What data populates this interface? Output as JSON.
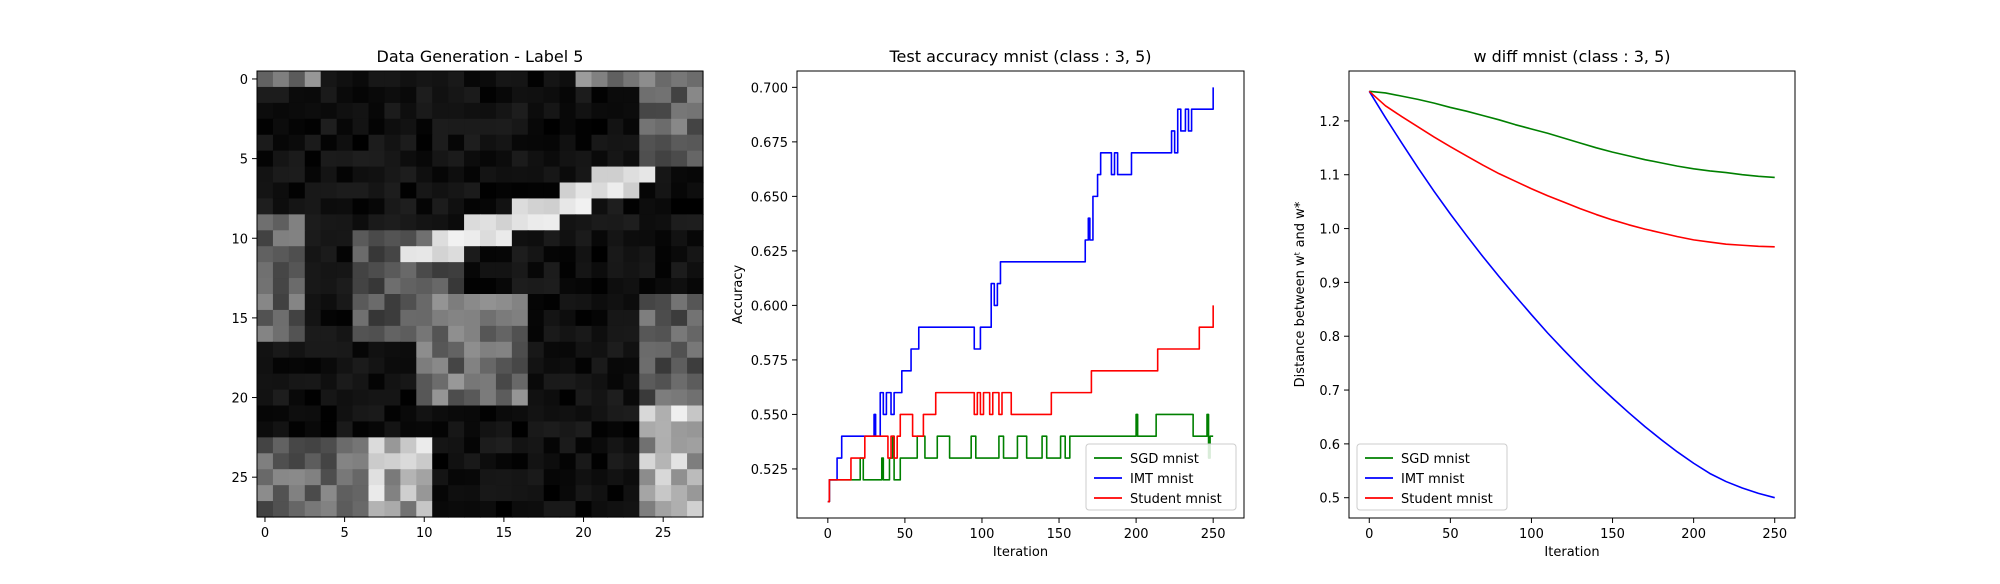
{
  "figure": {
    "panels": [
      {
        "title": "Data Generation - Label 5"
      },
      {
        "title": "Test accuracy mnist (class : 3, 5)",
        "xlabel": "Iteration",
        "ylabel": "Accuracy"
      },
      {
        "title": "w diff mnist (class : 3, 5)",
        "xlabel": "Iteration",
        "ylabel": "Distance between wᵗ and w*"
      }
    ]
  },
  "chart_data": [
    {
      "type": "heatmap",
      "title": "Data Generation - Label 5",
      "colormap": "gray",
      "value_range": [
        0,
        1
      ],
      "x_ticks": [
        0,
        5,
        10,
        15,
        20,
        25
      ],
      "y_ticks": [
        0,
        5,
        10,
        15,
        20,
        25
      ],
      "grid_size": [
        28,
        28
      ],
      "bright_regions": [
        {
          "row": 0,
          "col_from": 0,
          "col_to": 3,
          "value": 0.6
        },
        {
          "row": 0,
          "col_from": 20,
          "col_to": 27,
          "value": 0.65
        },
        {
          "rows": [
            0,
            5
          ],
          "cols": [
            24,
            27
          ],
          "value": 0.55
        },
        {
          "diagonal_stroke": {
            "from": [
              11,
              9
            ],
            "to": [
              6,
              22
            ]
          },
          "value": 0.95
        },
        {
          "rows": [
            9,
            16
          ],
          "cols": [
            0,
            2
          ],
          "value": 0.55
        },
        {
          "rows": [
            10,
            16
          ],
          "cols": [
            6,
            12
          ],
          "value": 0.45
        },
        {
          "rows": [
            14,
            20
          ],
          "cols": [
            10,
            16
          ],
          "value": 0.6
        },
        {
          "rows": [
            14,
            21
          ],
          "cols": [
            24,
            27
          ],
          "value": 0.5
        },
        {
          "rows": [
            23,
            27
          ],
          "cols": [
            7,
            10
          ],
          "value": 0.95
        },
        {
          "rows": [
            23,
            27
          ],
          "cols": [
            0,
            6
          ],
          "value": 0.55
        },
        {
          "rows": [
            21,
            27
          ],
          "cols": [
            24,
            27
          ],
          "value": 0.95
        }
      ]
    },
    {
      "type": "line",
      "title": "Test accuracy mnist (class : 3, 5)",
      "xlabel": "Iteration",
      "ylabel": "Accuracy",
      "xlim": [
        -20,
        270
      ],
      "ylim": [
        0.5025,
        0.7075
      ],
      "x_ticks": [
        0,
        50,
        100,
        150,
        200,
        250
      ],
      "y_ticks": [
        0.525,
        0.55,
        0.575,
        0.6,
        0.625,
        0.65,
        0.675,
        0.7
      ],
      "y_tick_labels": [
        "0.525",
        "0.550",
        "0.575",
        "0.600",
        "0.625",
        "0.650",
        "0.675",
        "0.700"
      ],
      "legend": "bottom-right",
      "series": [
        {
          "name": "SGD mnist",
          "color": "#008000",
          "points": [
            [
              0,
              0.51
            ],
            [
              1,
              0.52
            ],
            [
              20,
              0.52
            ],
            [
              21,
              0.53
            ],
            [
              23,
              0.52
            ],
            [
              34,
              0.52
            ],
            [
              35,
              0.53
            ],
            [
              36,
              0.52
            ],
            [
              40,
              0.53
            ],
            [
              42,
              0.54
            ],
            [
              43,
              0.52
            ],
            [
              46,
              0.52
            ],
            [
              47,
              0.53
            ],
            [
              57,
              0.53
            ],
            [
              58,
              0.54
            ],
            [
              62,
              0.54
            ],
            [
              63,
              0.53
            ],
            [
              70,
              0.53
            ],
            [
              71,
              0.54
            ],
            [
              78,
              0.54
            ],
            [
              79,
              0.53
            ],
            [
              92,
              0.53
            ],
            [
              93,
              0.54
            ],
            [
              95,
              0.54
            ],
            [
              96,
              0.53
            ],
            [
              110,
              0.53
            ],
            [
              111,
              0.54
            ],
            [
              113,
              0.54
            ],
            [
              114,
              0.53
            ],
            [
              122,
              0.53
            ],
            [
              123,
              0.54
            ],
            [
              128,
              0.54
            ],
            [
              129,
              0.53
            ],
            [
              138,
              0.53
            ],
            [
              139,
              0.54
            ],
            [
              141,
              0.54
            ],
            [
              142,
              0.53
            ],
            [
              150,
              0.53
            ],
            [
              151,
              0.54
            ],
            [
              153,
              0.54
            ],
            [
              154,
              0.53
            ],
            [
              156,
              0.53
            ],
            [
              157,
              0.54
            ],
            [
              199,
              0.54
            ],
            [
              200,
              0.55
            ],
            [
              201,
              0.54
            ],
            [
              212,
              0.54
            ],
            [
              213,
              0.55
            ],
            [
              236,
              0.55
            ],
            [
              237,
              0.54
            ],
            [
              245,
              0.54
            ],
            [
              246,
              0.55
            ],
            [
              247,
              0.53
            ],
            [
              248,
              0.54
            ],
            [
              250,
              0.54
            ]
          ]
        },
        {
          "name": "IMT mnist",
          "color": "#0000ff",
          "points": [
            [
              0,
              0.51
            ],
            [
              1,
              0.52
            ],
            [
              5,
              0.52
            ],
            [
              6,
              0.53
            ],
            [
              9,
              0.54
            ],
            [
              29,
              0.54
            ],
            [
              30,
              0.55
            ],
            [
              31,
              0.54
            ],
            [
              34,
              0.56
            ],
            [
              36,
              0.55
            ],
            [
              38,
              0.56
            ],
            [
              41,
              0.55
            ],
            [
              43,
              0.56
            ],
            [
              46,
              0.56
            ],
            [
              48,
              0.57
            ],
            [
              52,
              0.57
            ],
            [
              54,
              0.58
            ],
            [
              58,
              0.58
            ],
            [
              59,
              0.59
            ],
            [
              94,
              0.59
            ],
            [
              95,
              0.58
            ],
            [
              98,
              0.58
            ],
            [
              99,
              0.59
            ],
            [
              104,
              0.59
            ],
            [
              106,
              0.61
            ],
            [
              108,
              0.6
            ],
            [
              110,
              0.61
            ],
            [
              112,
              0.62
            ],
            [
              166,
              0.62
            ],
            [
              167,
              0.63
            ],
            [
              169,
              0.64
            ],
            [
              170,
              0.63
            ],
            [
              172,
              0.65
            ],
            [
              175,
              0.66
            ],
            [
              177,
              0.67
            ],
            [
              183,
              0.67
            ],
            [
              184,
              0.66
            ],
            [
              186,
              0.67
            ],
            [
              188,
              0.66
            ],
            [
              195,
              0.66
            ],
            [
              197,
              0.67
            ],
            [
              222,
              0.67
            ],
            [
              223,
              0.68
            ],
            [
              225,
              0.67
            ],
            [
              227,
              0.69
            ],
            [
              229,
              0.68
            ],
            [
              232,
              0.69
            ],
            [
              234,
              0.68
            ],
            [
              236,
              0.69
            ],
            [
              246,
              0.69
            ],
            [
              247,
              0.69
            ],
            [
              248,
              0.69
            ],
            [
              250,
              0.7
            ]
          ]
        },
        {
          "name": "Student mnist",
          "color": "#ff0000",
          "points": [
            [
              0,
              0.51
            ],
            [
              1,
              0.52
            ],
            [
              14,
              0.52
            ],
            [
              15,
              0.53
            ],
            [
              23,
              0.53
            ],
            [
              24,
              0.54
            ],
            [
              38,
              0.54
            ],
            [
              39,
              0.53
            ],
            [
              41,
              0.54
            ],
            [
              43,
              0.53
            ],
            [
              45,
              0.54
            ],
            [
              47,
              0.55
            ],
            [
              53,
              0.55
            ],
            [
              55,
              0.54
            ],
            [
              60,
              0.54
            ],
            [
              62,
              0.55
            ],
            [
              69,
              0.55
            ],
            [
              70,
              0.56
            ],
            [
              94,
              0.56
            ],
            [
              95,
              0.55
            ],
            [
              97,
              0.56
            ],
            [
              99,
              0.55
            ],
            [
              101,
              0.56
            ],
            [
              104,
              0.56
            ],
            [
              105,
              0.55
            ],
            [
              107,
              0.56
            ],
            [
              110,
              0.56
            ],
            [
              111,
              0.55
            ],
            [
              113,
              0.56
            ],
            [
              118,
              0.56
            ],
            [
              119,
              0.55
            ],
            [
              144,
              0.55
            ],
            [
              145,
              0.56
            ],
            [
              170,
              0.56
            ],
            [
              171,
              0.57
            ],
            [
              213,
              0.57
            ],
            [
              214,
              0.58
            ],
            [
              240,
              0.58
            ],
            [
              241,
              0.59
            ],
            [
              248,
              0.59
            ],
            [
              250,
              0.6
            ]
          ]
        }
      ]
    },
    {
      "type": "line",
      "title": "w diff mnist (class : 3, 5)",
      "xlabel": "Iteration",
      "ylabel": "Distance between wᵗ and w*",
      "xlim": [
        -12.5,
        262.5
      ],
      "ylim": [
        0.4623,
        1.2927
      ],
      "x_ticks": [
        0,
        50,
        100,
        150,
        200,
        250
      ],
      "y_ticks": [
        0.5,
        0.6,
        0.7,
        0.8,
        0.9,
        1.0,
        1.1,
        1.2
      ],
      "y_tick_labels": [
        "0.5",
        "0.6",
        "0.7",
        "0.8",
        "0.9",
        "1.0",
        "1.1",
        "1.2"
      ],
      "legend": "bottom-left",
      "series": [
        {
          "name": "SGD mnist",
          "color": "#008000",
          "points": [
            [
              0,
              1.255
            ],
            [
              10,
              1.252
            ],
            [
              20,
              1.246
            ],
            [
              30,
              1.24
            ],
            [
              40,
              1.233
            ],
            [
              50,
              1.225
            ],
            [
              60,
              1.218
            ],
            [
              70,
              1.21
            ],
            [
              80,
              1.202
            ],
            [
              90,
              1.193
            ],
            [
              100,
              1.185
            ],
            [
              110,
              1.177
            ],
            [
              120,
              1.168
            ],
            [
              130,
              1.159
            ],
            [
              140,
              1.15
            ],
            [
              150,
              1.142
            ],
            [
              160,
              1.135
            ],
            [
              170,
              1.128
            ],
            [
              180,
              1.122
            ],
            [
              190,
              1.116
            ],
            [
              200,
              1.111
            ],
            [
              210,
              1.107
            ],
            [
              220,
              1.104
            ],
            [
              230,
              1.1
            ],
            [
              240,
              1.097
            ],
            [
              250,
              1.095
            ]
          ]
        },
        {
          "name": "IMT mnist",
          "color": "#0000ff",
          "points": [
            [
              0,
              1.255
            ],
            [
              10,
              1.206
            ],
            [
              20,
              1.159
            ],
            [
              30,
              1.113
            ],
            [
              40,
              1.069
            ],
            [
              50,
              1.027
            ],
            [
              60,
              0.987
            ],
            [
              70,
              0.948
            ],
            [
              80,
              0.911
            ],
            [
              90,
              0.875
            ],
            [
              100,
              0.84
            ],
            [
              110,
              0.806
            ],
            [
              120,
              0.774
            ],
            [
              130,
              0.743
            ],
            [
              140,
              0.713
            ],
            [
              150,
              0.685
            ],
            [
              160,
              0.658
            ],
            [
              170,
              0.632
            ],
            [
              180,
              0.608
            ],
            [
              190,
              0.585
            ],
            [
              200,
              0.564
            ],
            [
              210,
              0.545
            ],
            [
              220,
              0.53
            ],
            [
              230,
              0.518
            ],
            [
              240,
              0.508
            ],
            [
              250,
              0.5
            ]
          ]
        },
        {
          "name": "Student mnist",
          "color": "#ff0000",
          "points": [
            [
              0,
              1.255
            ],
            [
              10,
              1.228
            ],
            [
              20,
              1.208
            ],
            [
              30,
              1.189
            ],
            [
              40,
              1.17
            ],
            [
              50,
              1.152
            ],
            [
              60,
              1.135
            ],
            [
              70,
              1.118
            ],
            [
              80,
              1.102
            ],
            [
              90,
              1.088
            ],
            [
              100,
              1.074
            ],
            [
              110,
              1.061
            ],
            [
              120,
              1.049
            ],
            [
              130,
              1.037
            ],
            [
              140,
              1.026
            ],
            [
              150,
              1.016
            ],
            [
              160,
              1.007
            ],
            [
              170,
              0.999
            ],
            [
              180,
              0.992
            ],
            [
              190,
              0.985
            ],
            [
              200,
              0.979
            ],
            [
              210,
              0.975
            ],
            [
              220,
              0.971
            ],
            [
              230,
              0.969
            ],
            [
              240,
              0.967
            ],
            [
              250,
              0.966
            ]
          ]
        }
      ]
    }
  ]
}
